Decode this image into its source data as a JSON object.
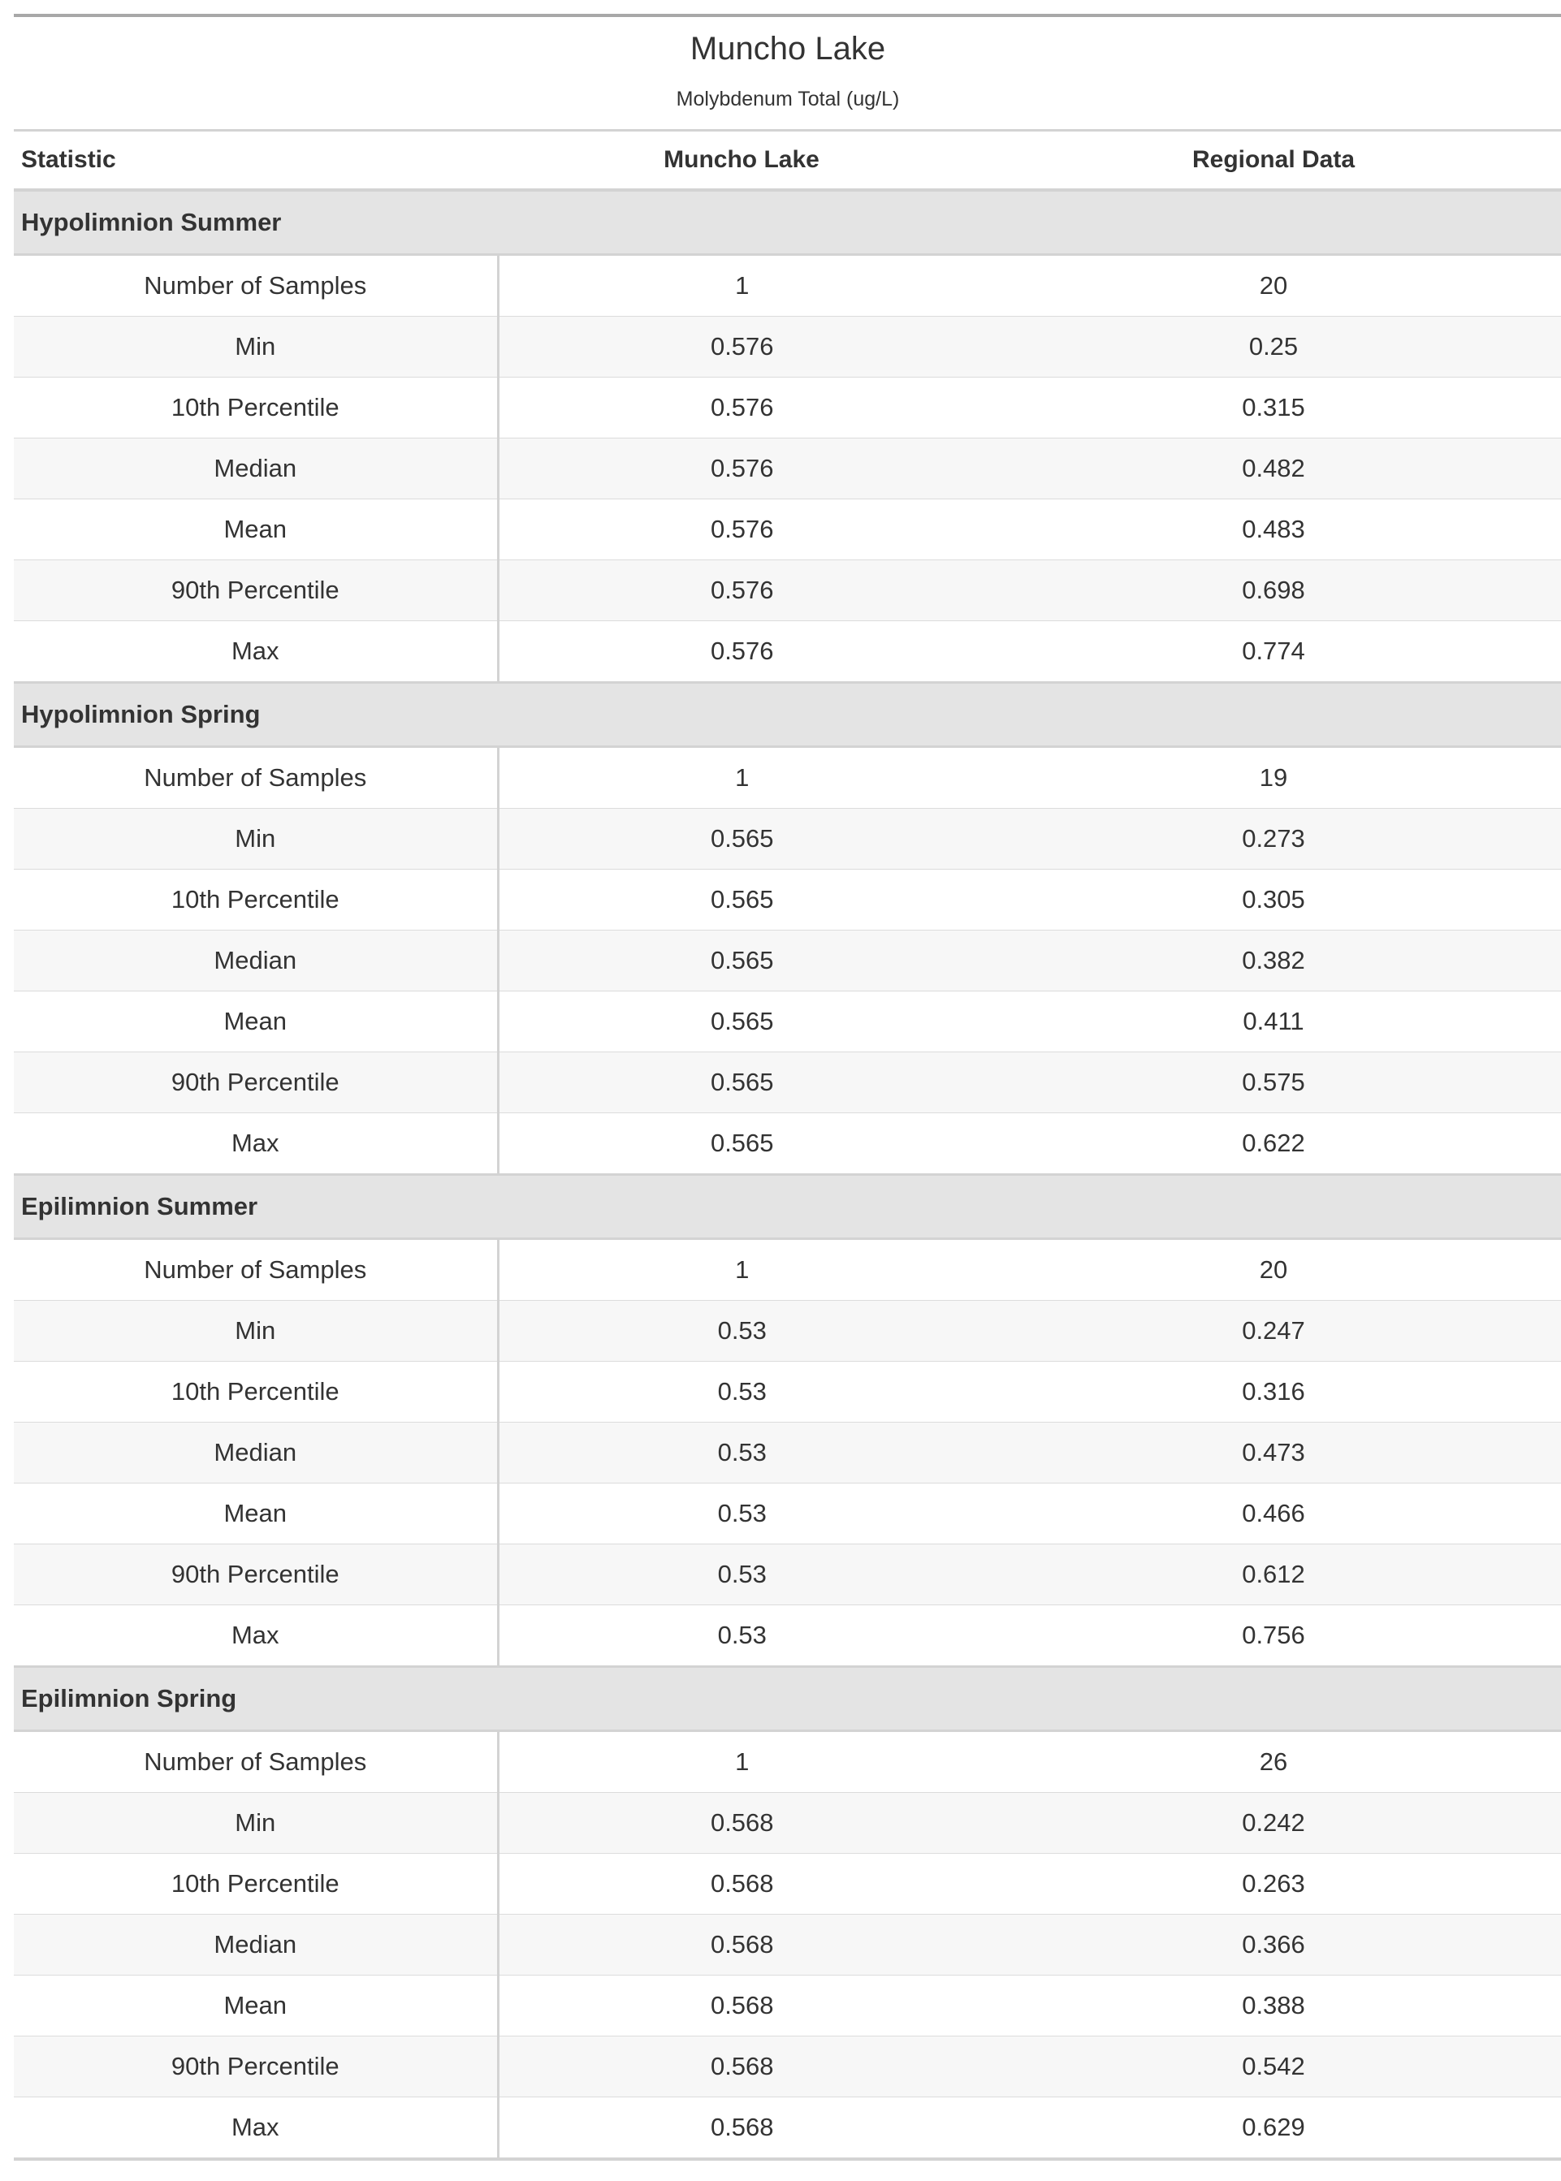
{
  "header": {
    "title": "Muncho Lake",
    "subtitle": "Molybdenum Total (ug/L)"
  },
  "columns": {
    "statistic": "Statistic",
    "lake": "Muncho Lake",
    "regional": "Regional Data"
  },
  "groups": [
    {
      "name": "Hypolimnion Summer",
      "rows": [
        {
          "stat": "Number of Samples",
          "lake": "1",
          "regional": "20"
        },
        {
          "stat": "Min",
          "lake": "0.576",
          "regional": "0.25"
        },
        {
          "stat": "10th Percentile",
          "lake": "0.576",
          "regional": "0.315"
        },
        {
          "stat": "Median",
          "lake": "0.576",
          "regional": "0.482"
        },
        {
          "stat": "Mean",
          "lake": "0.576",
          "regional": "0.483"
        },
        {
          "stat": "90th Percentile",
          "lake": "0.576",
          "regional": "0.698"
        },
        {
          "stat": "Max",
          "lake": "0.576",
          "regional": "0.774"
        }
      ]
    },
    {
      "name": "Hypolimnion Spring",
      "rows": [
        {
          "stat": "Number of Samples",
          "lake": "1",
          "regional": "19"
        },
        {
          "stat": "Min",
          "lake": "0.565",
          "regional": "0.273"
        },
        {
          "stat": "10th Percentile",
          "lake": "0.565",
          "regional": "0.305"
        },
        {
          "stat": "Median",
          "lake": "0.565",
          "regional": "0.382"
        },
        {
          "stat": "Mean",
          "lake": "0.565",
          "regional": "0.411"
        },
        {
          "stat": "90th Percentile",
          "lake": "0.565",
          "regional": "0.575"
        },
        {
          "stat": "Max",
          "lake": "0.565",
          "regional": "0.622"
        }
      ]
    },
    {
      "name": "Epilimnion Summer",
      "rows": [
        {
          "stat": "Number of Samples",
          "lake": "1",
          "regional": "20"
        },
        {
          "stat": "Min",
          "lake": "0.53",
          "regional": "0.247"
        },
        {
          "stat": "10th Percentile",
          "lake": "0.53",
          "regional": "0.316"
        },
        {
          "stat": "Median",
          "lake": "0.53",
          "regional": "0.473"
        },
        {
          "stat": "Mean",
          "lake": "0.53",
          "regional": "0.466"
        },
        {
          "stat": "90th Percentile",
          "lake": "0.53",
          "regional": "0.612"
        },
        {
          "stat": "Max",
          "lake": "0.53",
          "regional": "0.756"
        }
      ]
    },
    {
      "name": "Epilimnion Spring",
      "rows": [
        {
          "stat": "Number of Samples",
          "lake": "1",
          "regional": "26"
        },
        {
          "stat": "Min",
          "lake": "0.568",
          "regional": "0.242"
        },
        {
          "stat": "10th Percentile",
          "lake": "0.568",
          "regional": "0.263"
        },
        {
          "stat": "Median",
          "lake": "0.568",
          "regional": "0.366"
        },
        {
          "stat": "Mean",
          "lake": "0.568",
          "regional": "0.388"
        },
        {
          "stat": "90th Percentile",
          "lake": "0.568",
          "regional": "0.542"
        },
        {
          "stat": "Max",
          "lake": "0.568",
          "regional": "0.629"
        }
      ]
    }
  ]
}
